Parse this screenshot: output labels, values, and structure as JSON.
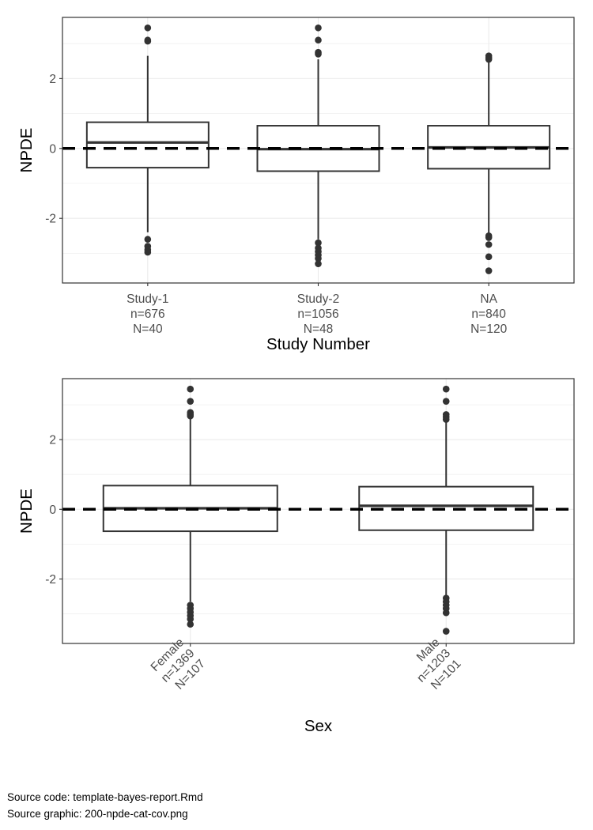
{
  "chart_data": [
    {
      "type": "boxplot",
      "xlabel": "Study Number",
      "ylabel": "NPDE",
      "ylim": [
        -3.85,
        3.75
      ],
      "yticks": [
        -2,
        0,
        2
      ],
      "grid": true,
      "reference_line": {
        "y": 0,
        "style": "dashed"
      },
      "categories": [
        {
          "label": [
            "Study-1",
            "n=676",
            "N=40"
          ],
          "stats": {
            "lower_whisker": -2.4,
            "q1": -0.55,
            "median": 0.17,
            "q3": 0.75,
            "upper_whisker": 2.65
          },
          "outliers": [
            3.45,
            3.1,
            3.07,
            -2.6,
            -2.8,
            -2.9,
            -2.97
          ]
        },
        {
          "label": [
            "Study-2",
            "n=1056",
            "N=48"
          ],
          "stats": {
            "lower_whisker": -2.6,
            "q1": -0.65,
            "median": -0.02,
            "q3": 0.65,
            "upper_whisker": 2.55
          },
          "outliers": [
            3.45,
            3.1,
            2.75,
            2.7,
            -2.7,
            -2.85,
            -2.95,
            -3.05,
            -3.15,
            -3.3
          ]
        },
        {
          "label": [
            "NA",
            "n=840",
            "N=120"
          ],
          "stats": {
            "lower_whisker": -2.45,
            "q1": -0.58,
            "median": 0.03,
            "q3": 0.65,
            "upper_whisker": 2.5
          },
          "outliers": [
            2.65,
            2.6,
            2.55,
            -2.5,
            -2.55,
            -2.75,
            -3.1,
            -3.5
          ]
        }
      ]
    },
    {
      "type": "boxplot",
      "xlabel": "Sex",
      "ylabel": "NPDE",
      "ylim": [
        -3.85,
        3.75
      ],
      "yticks": [
        -2,
        0,
        2
      ],
      "grid": true,
      "reference_line": {
        "y": 0,
        "style": "dashed"
      },
      "categories": [
        {
          "label": [
            "Female",
            "n=1369",
            "N=107"
          ],
          "stats": {
            "lower_whisker": -2.65,
            "q1": -0.63,
            "median": 0.03,
            "q3": 0.68,
            "upper_whisker": 2.65
          },
          "outliers": [
            3.45,
            3.1,
            2.78,
            2.72,
            2.68,
            -2.75,
            -2.85,
            -2.95,
            -3.05,
            -3.15,
            -3.3
          ]
        },
        {
          "label": [
            "Male",
            "n=1203",
            "N=101"
          ],
          "stats": {
            "lower_whisker": -2.5,
            "q1": -0.6,
            "median": 0.1,
            "q3": 0.65,
            "upper_whisker": 2.5
          },
          "outliers": [
            3.45,
            3.1,
            2.72,
            2.65,
            2.58,
            -2.55,
            -2.65,
            -2.75,
            -2.85,
            -2.97,
            -3.5
          ]
        }
      ]
    }
  ],
  "captions": {
    "source_code": "Source code: template-bayes-report.Rmd",
    "source_graphic": "Source graphic: 200-npde-cat-cov.png"
  }
}
